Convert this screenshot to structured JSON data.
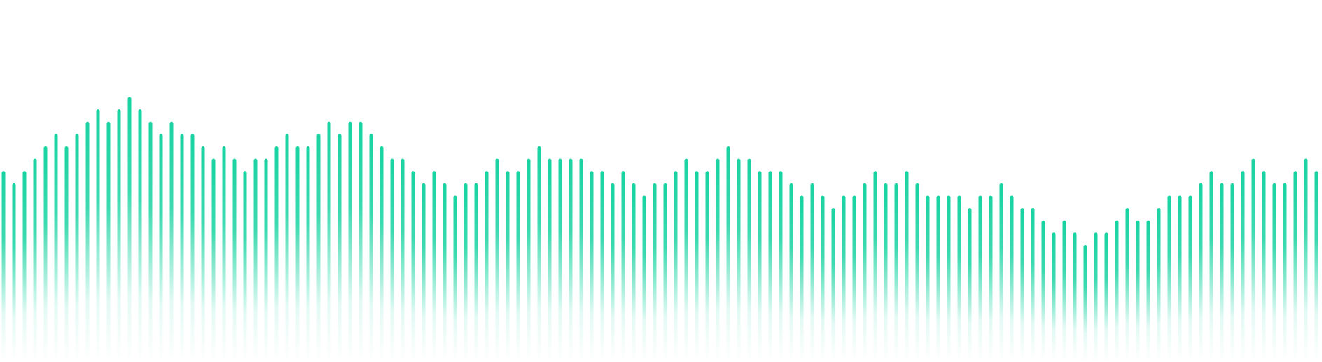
{
  "theme": {
    "background": "#ffffff",
    "bar_color": "#19d3a2",
    "bar_fade_color": "#19d3a2"
  },
  "chart_data": {
    "type": "bar",
    "style": "vertical waveform bars fading downward, no axes, no labels",
    "grid": false,
    "legend": "none",
    "ylim": [
      0,
      100
    ],
    "values": [
      46,
      43,
      46,
      49,
      52,
      55,
      52,
      55,
      58,
      61,
      58,
      61,
      64,
      61,
      58,
      55,
      58,
      55,
      55,
      52,
      49,
      52,
      49,
      46,
      49,
      49,
      52,
      55,
      52,
      52,
      55,
      58,
      55,
      58,
      58,
      55,
      52,
      49,
      49,
      46,
      43,
      46,
      43,
      40,
      43,
      43,
      46,
      49,
      46,
      46,
      49,
      52,
      49,
      49,
      49,
      49,
      46,
      46,
      43,
      46,
      43,
      40,
      43,
      43,
      46,
      49,
      46,
      46,
      49,
      52,
      49,
      49,
      46,
      46,
      46,
      43,
      40,
      43,
      40,
      37,
      40,
      40,
      43,
      46,
      43,
      43,
      46,
      43,
      40,
      40,
      40,
      40,
      37,
      40,
      40,
      43,
      40,
      37,
      37,
      34,
      31,
      34,
      31,
      28,
      31,
      31,
      34,
      37,
      34,
      34,
      37,
      40,
      40,
      40,
      43,
      46,
      43,
      43,
      46,
      49,
      46,
      43,
      43,
      46,
      49,
      46
    ]
  }
}
